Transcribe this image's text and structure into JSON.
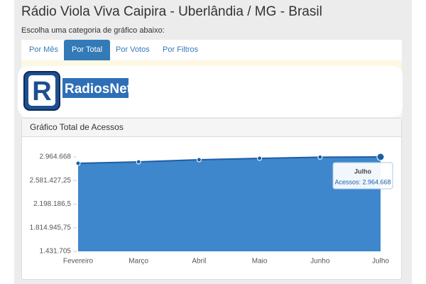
{
  "header": {
    "title": "Rádio Viola Viva Caipira - Uberlândia / MG - Brasil",
    "subtitle": "Escolha uma categoria de gráfico abaixo:"
  },
  "tabs": [
    "Por Mês",
    "Por Total",
    "Por Votos",
    "Por Filtros"
  ],
  "logo": {
    "text": "RadiosNet"
  },
  "chart_data": {
    "type": "area",
    "title": "Gráfico Total de Acessos",
    "categories": [
      "Fevereiro",
      "Março",
      "Abril",
      "Maio",
      "Junho",
      "Julho"
    ],
    "values": [
      2861000,
      2884000,
      2918600,
      2941600,
      2960000,
      2964668
    ],
    "color": "#3f87cc",
    "line_color": "#1c5ea6",
    "ylim": [
      1431705,
      2964668
    ],
    "yticks": [
      {
        "value": 1431705,
        "label": "1.431.705"
      },
      {
        "value": 1814945.75,
        "label": "1.814.945,75"
      },
      {
        "value": 2198186.5,
        "label": "2.198.186,5"
      },
      {
        "value": 2581427.25,
        "label": "2.581.427,25"
      },
      {
        "value": 2964668,
        "label": "2.964.668"
      }
    ],
    "grid": false,
    "tooltip": {
      "category": "Julho",
      "text": "Acessos: 2.964.668"
    }
  }
}
